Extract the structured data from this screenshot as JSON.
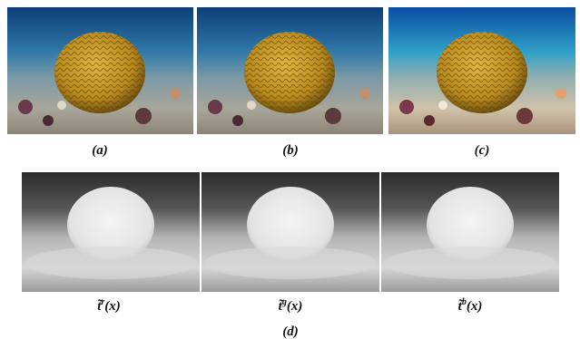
{
  "figure": {
    "top_labels": [
      "(a)",
      "(b)",
      "(c)"
    ],
    "bottom_labels": [
      {
        "base": "t̃",
        "sup": "r",
        "arg": "(x)"
      },
      {
        "base": "t̃",
        "sup": "g",
        "arg": "(x)"
      },
      {
        "base": "t̃",
        "sup": "b",
        "arg": "(x)"
      }
    ],
    "caption": "(d)"
  }
}
